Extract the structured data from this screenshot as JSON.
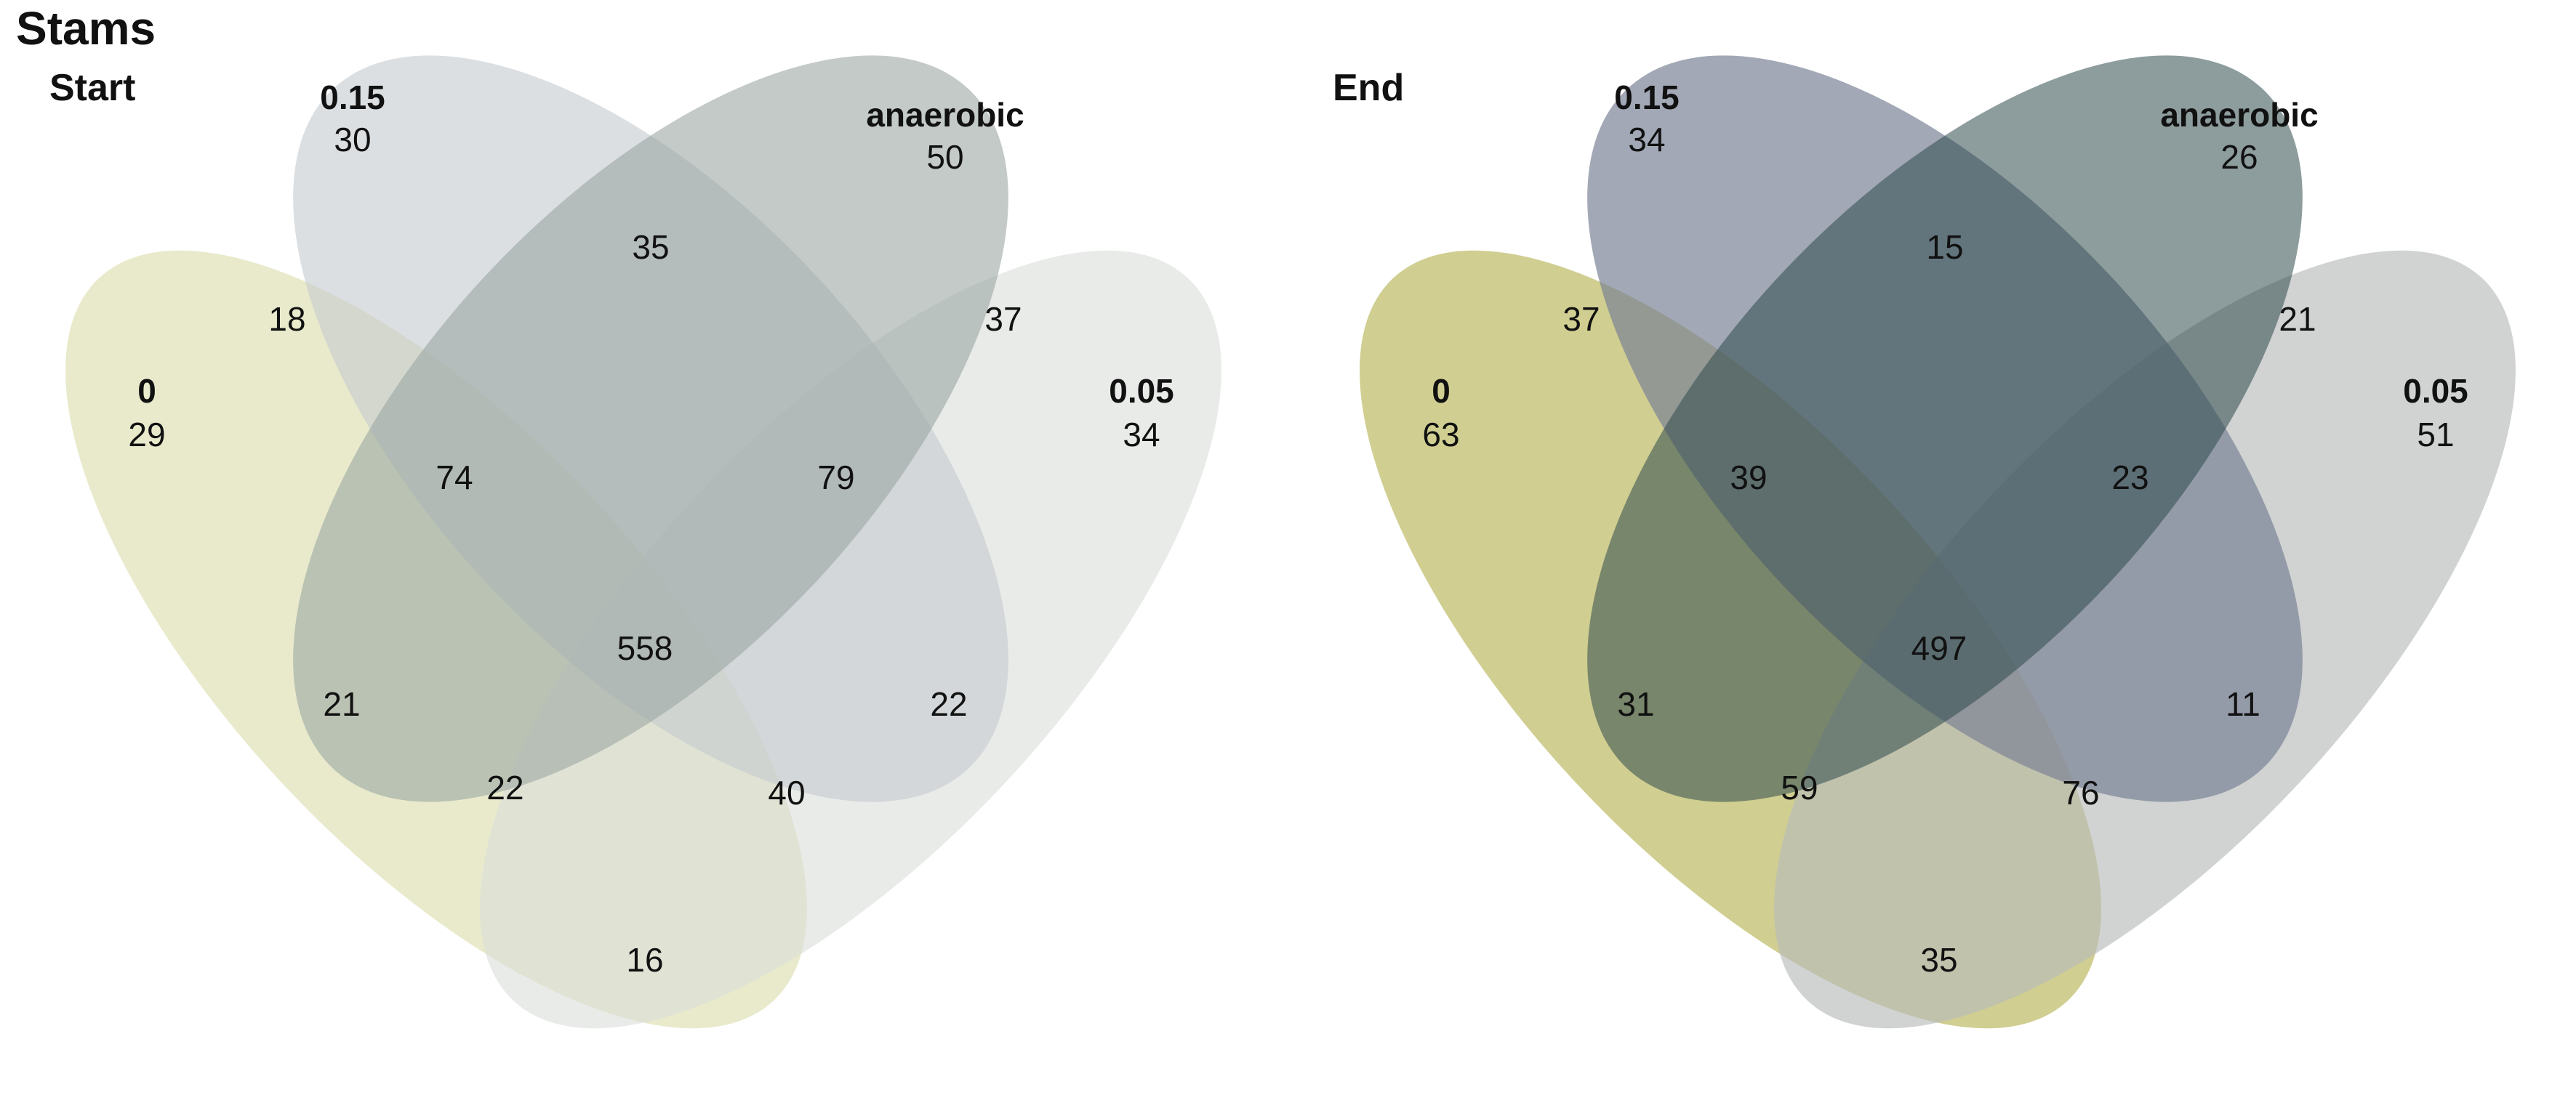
{
  "title": "Stams",
  "panels": [
    {
      "title": "Start",
      "set_colors": {
        "0": "#d9dca9",
        "0.15": "#c4c9ce",
        "anaerobic": "#9ba6a4",
        "0.05": "#dadedb"
      },
      "set_labels": [
        {
          "name": "0.15",
          "count": 30
        },
        {
          "name": "anaerobic",
          "count": 50
        },
        {
          "name": "0",
          "count": 29
        },
        {
          "name": "0.05",
          "count": 34
        }
      ],
      "regions": {
        "r_015_an": 35,
        "r_0_015": 18,
        "r_an_005": 37,
        "r_0_015_an": 74,
        "r_015_an_005": 79,
        "r_all": 558,
        "r_0_015_005": 21,
        "r_015_005": 22,
        "r_0_an_005": 22,
        "r_0_015_an_005b": 40,
        "r_0_005": 16
      }
    },
    {
      "title": "End",
      "set_colors": {
        "0": "#c4c275",
        "0.15": "#7b8396",
        "anaerobic": "#2f4a4c",
        "0.05": "#b8bcbb"
      },
      "set_labels": [
        {
          "name": "0.15",
          "count": 34
        },
        {
          "name": "anaerobic",
          "count": 26
        },
        {
          "name": "0",
          "count": 63
        },
        {
          "name": "0.05",
          "count": 51
        }
      ],
      "regions": {
        "r_015_an": 15,
        "r_0_015": 37,
        "r_an_005": 21,
        "r_0_015_an": 39,
        "r_015_an_005": 23,
        "r_all": 497,
        "r_0_015_005": 31,
        "r_015_005": 11,
        "r_0_an_005": 59,
        "r_0_015_an_005b": 76,
        "r_0_005": 35
      }
    }
  ]
}
